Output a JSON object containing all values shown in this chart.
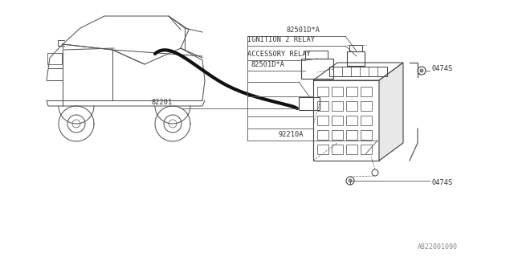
{
  "bg_color": "#ffffff",
  "line_color": "#555555",
  "text_color": "#333333",
  "fig_width": 6.4,
  "fig_height": 3.2,
  "dpi": 100,
  "bottom_label": "A822001090",
  "labels": {
    "82501D_A_top": "82501D*A",
    "ignition_relay": "IGNITION 2 RELAY",
    "accessory_relay": "ACCESSORY RELAY",
    "82501D_A_bot": "82501D*A",
    "82201": "82201",
    "92210A": "92210A",
    "0474S_right": "0474S",
    "0474S_bot": "0474S"
  },
  "car_color": "#555555",
  "fuse_color": "#444444",
  "wire_color": "#111111",
  "leader_color": "#666666"
}
